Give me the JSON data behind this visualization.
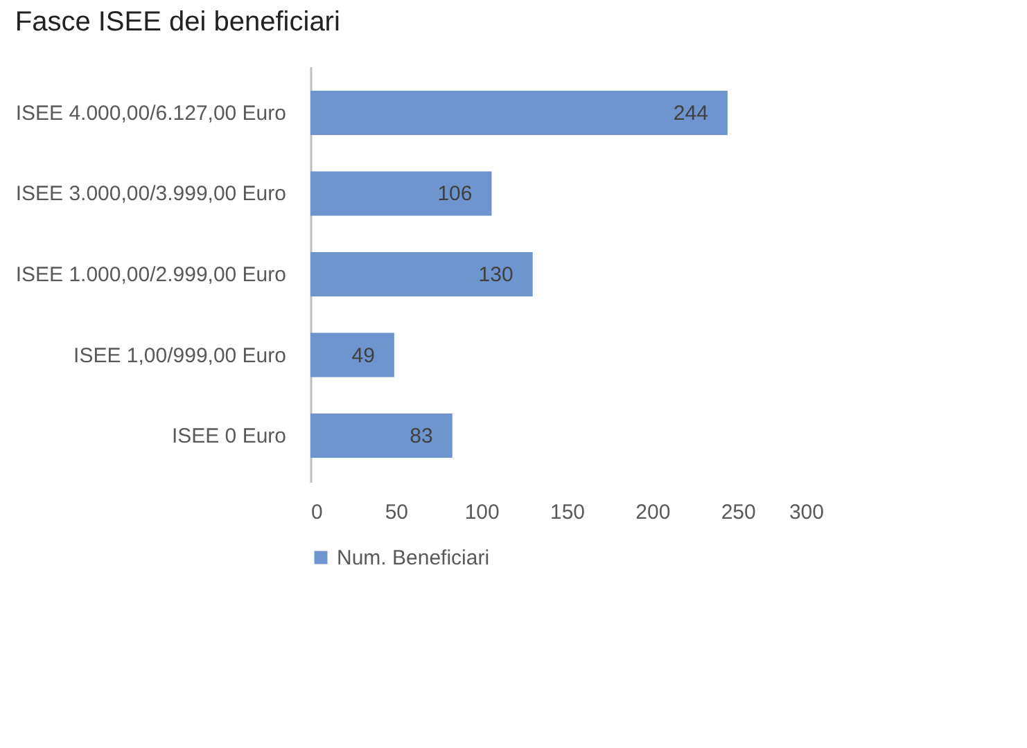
{
  "chart_data": {
    "type": "bar",
    "orientation": "horizontal",
    "title": "Fasce ISEE dei beneficiari",
    "categories": [
      "ISEE 4.000,00/6.127,00 Euro",
      "ISEE 3.000,00/3.999,00 Euro",
      "ISEE 1.000,00/2.999,00 Euro",
      "ISEE 1,00/999,00 Euro",
      "ISEE 0 Euro"
    ],
    "series": [
      {
        "name": "Num. Beneficiari",
        "color": "#6f95cf",
        "values": [
          244,
          106,
          130,
          49,
          83
        ]
      }
    ],
    "xlim": [
      0,
      300
    ],
    "xticks": [
      0,
      50,
      100,
      150,
      200,
      250,
      300
    ],
    "grid": false,
    "legend": "bottom",
    "data_labels": true
  }
}
